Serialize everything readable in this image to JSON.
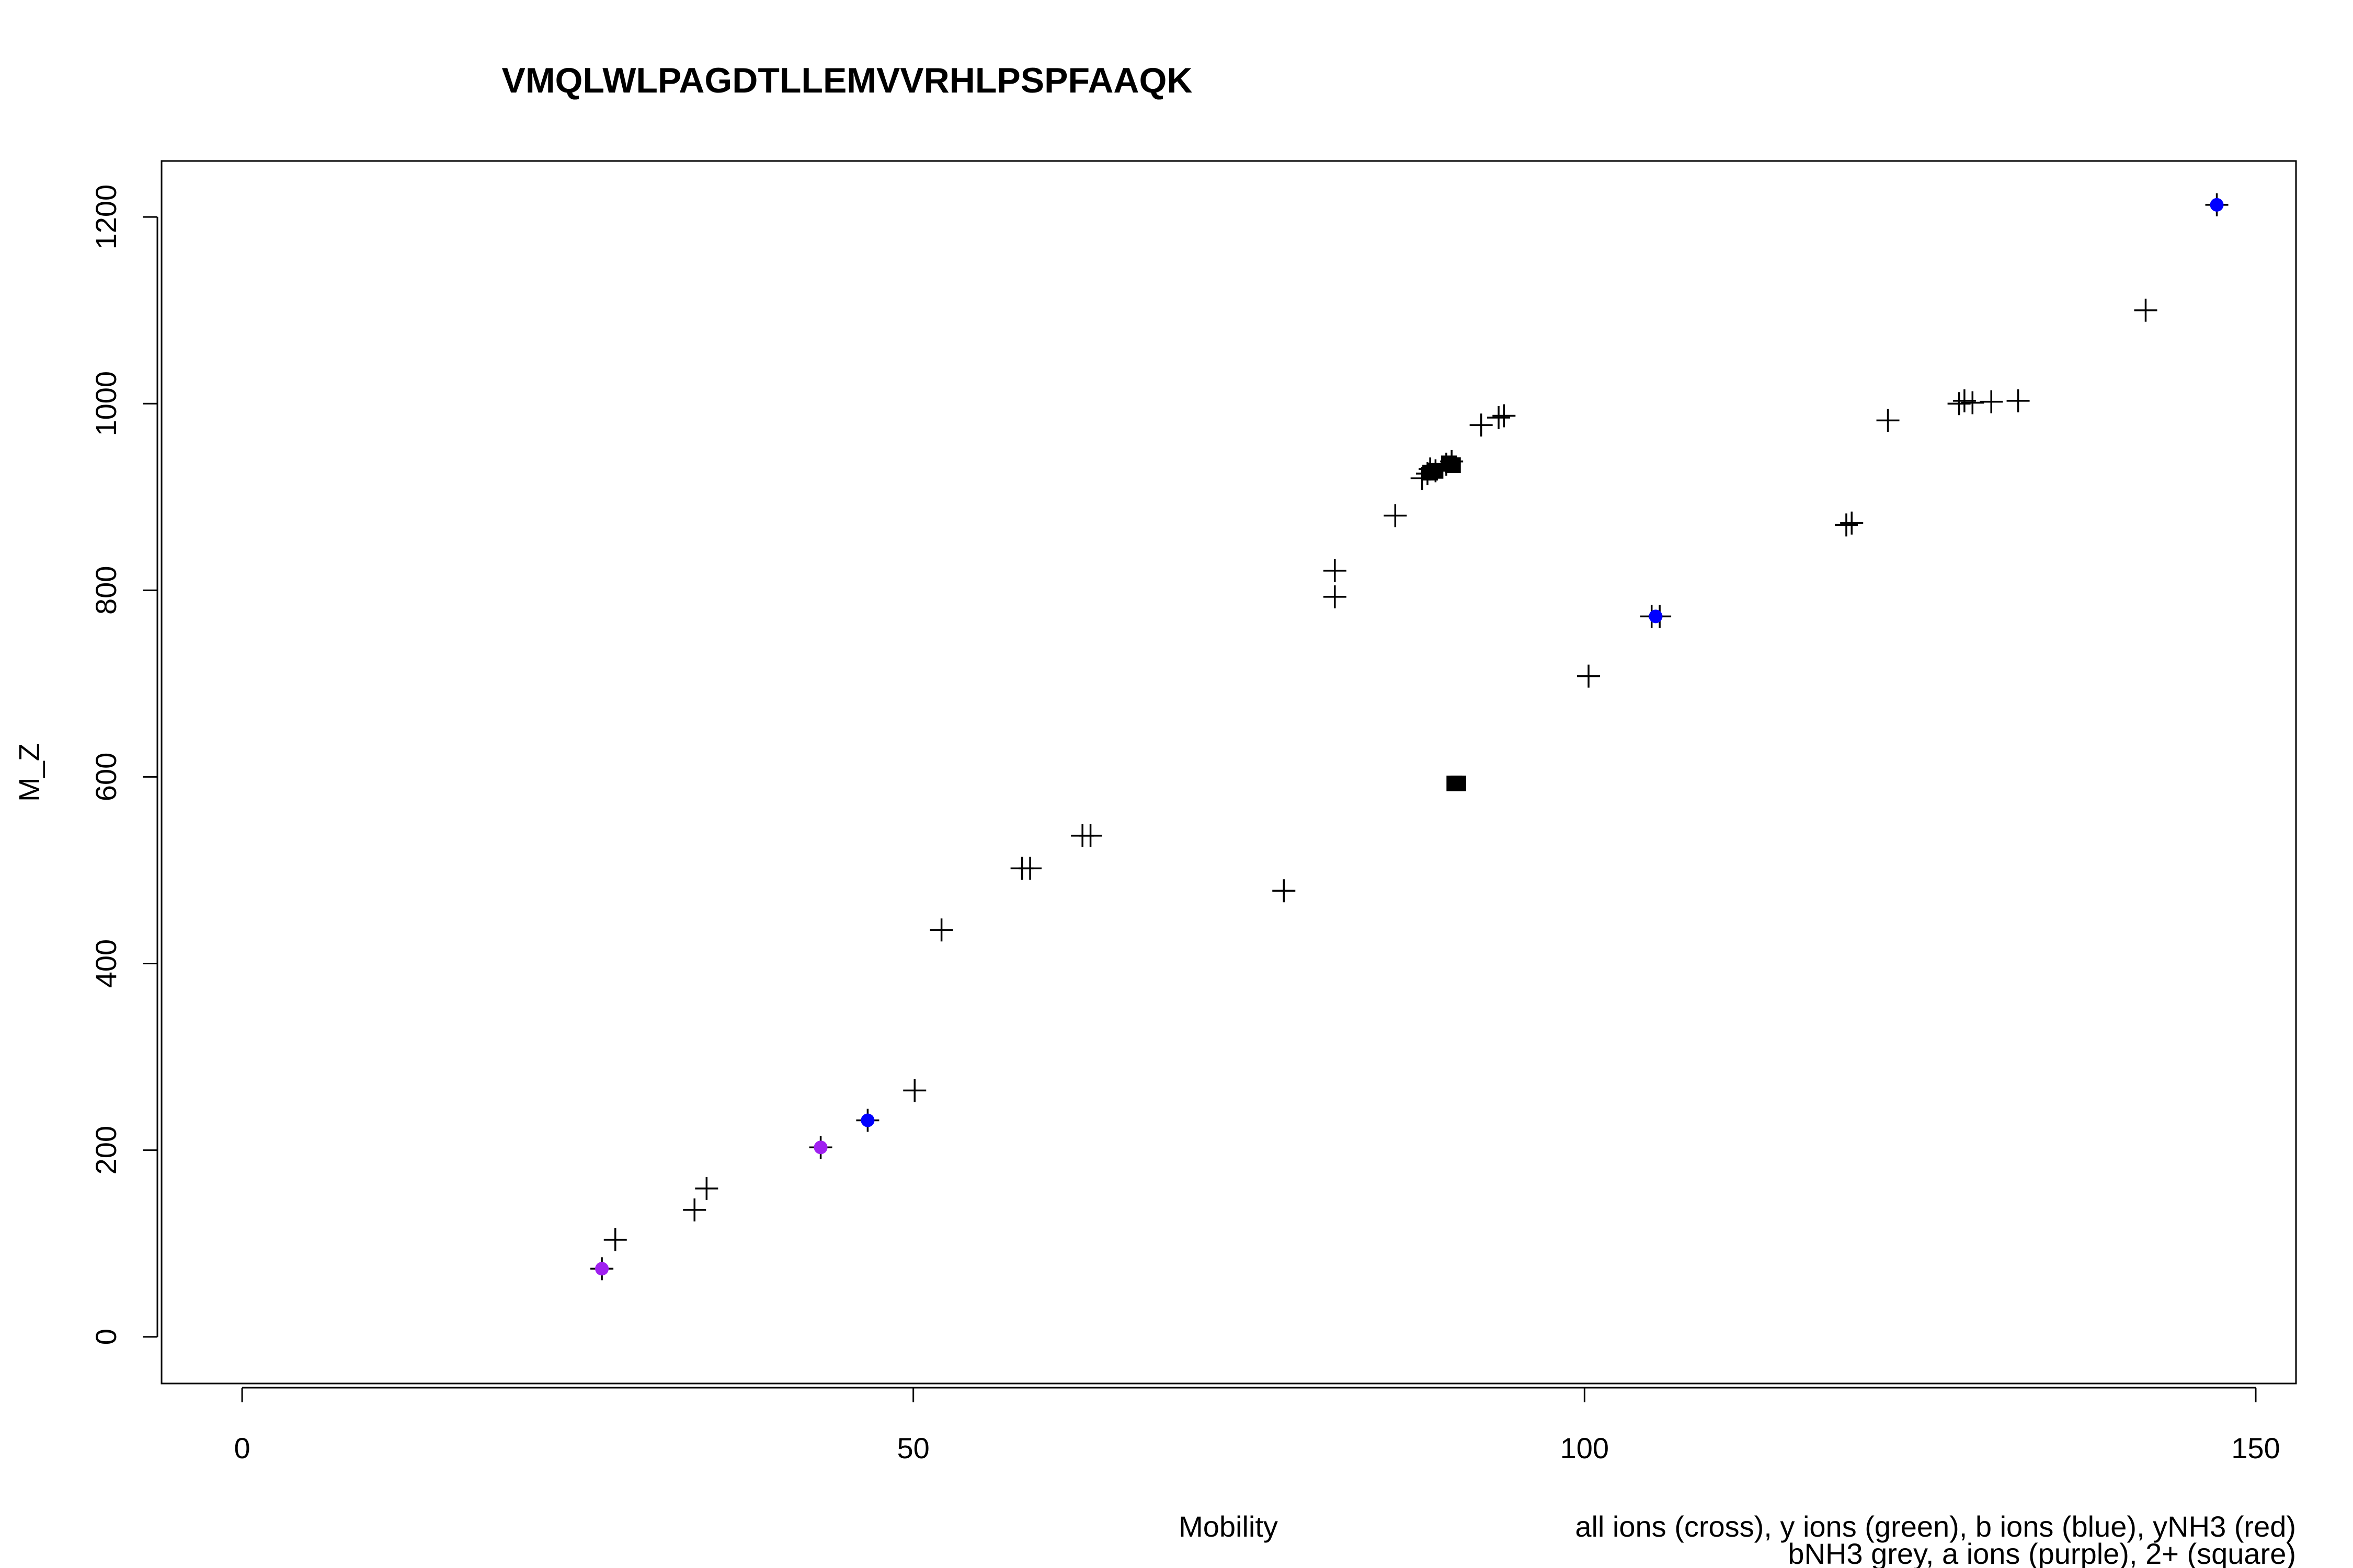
{
  "chart_data": {
    "type": "scatter",
    "title": "VMQLWLPAGDTLLEMVVRHLPSPFAAQK",
    "xlabel": "Mobility",
    "ylabel": "M_Z",
    "xlim": [
      -6,
      153
    ],
    "ylim": [
      -50,
      1260
    ],
    "xticks": [
      0,
      50,
      100,
      150
    ],
    "yticks": [
      0,
      200,
      400,
      600,
      800,
      1000,
      1200
    ],
    "grid": false,
    "legend": {
      "placement": "bottom-right",
      "lines": [
        "all ions (cross), y ions (green), b ions (blue), yNH3 (red)",
        "bNH3 grey, a ions (purple), 2+ (square)"
      ]
    },
    "series": [
      {
        "marker": "cross",
        "color": "#000000",
        "points": [
          [
            26.8,
            73
          ],
          [
            27.8,
            104
          ],
          [
            33.7,
            136
          ],
          [
            34.6,
            159
          ],
          [
            43.1,
            203
          ],
          [
            46.6,
            232
          ],
          [
            50.1,
            264
          ],
          [
            52.1,
            436
          ],
          [
            58.1,
            502
          ],
          [
            58.7,
            502
          ],
          [
            62.6,
            537
          ],
          [
            63.2,
            537
          ],
          [
            77.6,
            478
          ],
          [
            81.4,
            821
          ],
          [
            81.4,
            793
          ],
          [
            85.9,
            880
          ],
          [
            87.9,
            920
          ],
          [
            88.3,
            925
          ],
          [
            88.5,
            930
          ],
          [
            88.9,
            928
          ],
          [
            89.7,
            935
          ],
          [
            90.1,
            938
          ],
          [
            92.3,
            977
          ],
          [
            93.6,
            985
          ],
          [
            94.0,
            987
          ],
          [
            100.3,
            708
          ],
          [
            105.0,
            772
          ],
          [
            105.6,
            772
          ],
          [
            119.5,
            870
          ],
          [
            119.9,
            872
          ],
          [
            122.6,
            982
          ],
          [
            127.9,
            1000
          ],
          [
            128.3,
            1003
          ],
          [
            128.9,
            1001
          ],
          [
            130.3,
            1002
          ],
          [
            132.3,
            1003
          ],
          [
            141.8,
            1100
          ],
          [
            147.1,
            1213
          ]
        ]
      },
      {
        "marker": "square",
        "color": "#000000",
        "points": [
          [
            88.5,
            926
          ],
          [
            88.9,
            928
          ],
          [
            89.9,
            936
          ],
          [
            90.2,
            934
          ],
          [
            90.3,
            593
          ],
          [
            90.6,
            593
          ]
        ]
      },
      {
        "marker": "dot",
        "color": "#0000ff",
        "points": [
          [
            46.6,
            232
          ],
          [
            105.3,
            772
          ],
          [
            147.1,
            1213
          ]
        ]
      },
      {
        "marker": "dot",
        "color": "#a020f0",
        "points": [
          [
            26.8,
            73
          ],
          [
            43.1,
            203
          ]
        ]
      }
    ]
  }
}
